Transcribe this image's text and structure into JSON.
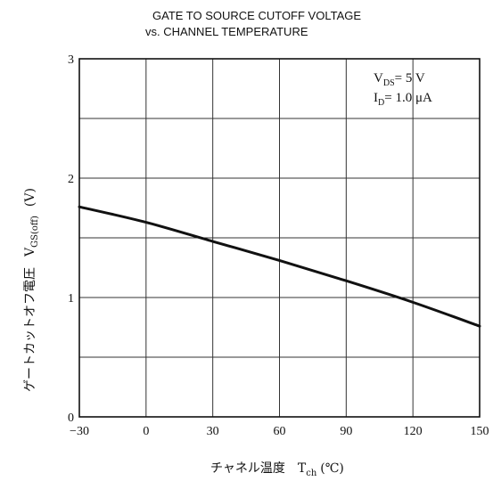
{
  "chart_data": {
    "type": "line",
    "title_line1": "GATE TO SOURCE CUTOFF VOLTAGE",
    "title_line2": "vs. CHANNEL TEMPERATURE",
    "xlabel_jp": "チャネル温度",
    "xlabel_sym": "T",
    "xlabel_sub": "ch",
    "xlabel_unit": "(℃)",
    "ylabel_jp": "ゲートカットオフ電圧",
    "ylabel_sym": "V",
    "ylabel_sub": "GS(off)",
    "ylabel_unit": "(V)",
    "xlim": [
      -30,
      150
    ],
    "ylim": [
      0,
      3
    ],
    "x_ticks": [
      -30,
      0,
      30,
      60,
      90,
      120,
      150
    ],
    "x_tick_labels": [
      "−30",
      "0",
      "30",
      "60",
      "90",
      "120",
      "150"
    ],
    "y_ticks": [
      0,
      1,
      2,
      3
    ],
    "y_tick_labels": [
      "0",
      "1",
      "2",
      "3"
    ],
    "y_grid_minor": [
      0.5,
      1.5,
      2.5
    ],
    "grid": true,
    "annotation": {
      "line1_main": "V",
      "line1_sub": "DS",
      "line1_rest": "= 5 V",
      "line2_main": "I",
      "line2_sub": "D",
      "line2_rest": "= 1.0 μA"
    },
    "series": [
      {
        "x": [
          -30,
          0,
          30,
          60,
          90,
          120,
          150
        ],
        "y": [
          1.76,
          1.63,
          1.47,
          1.31,
          1.14,
          0.96,
          0.76
        ]
      }
    ]
  }
}
